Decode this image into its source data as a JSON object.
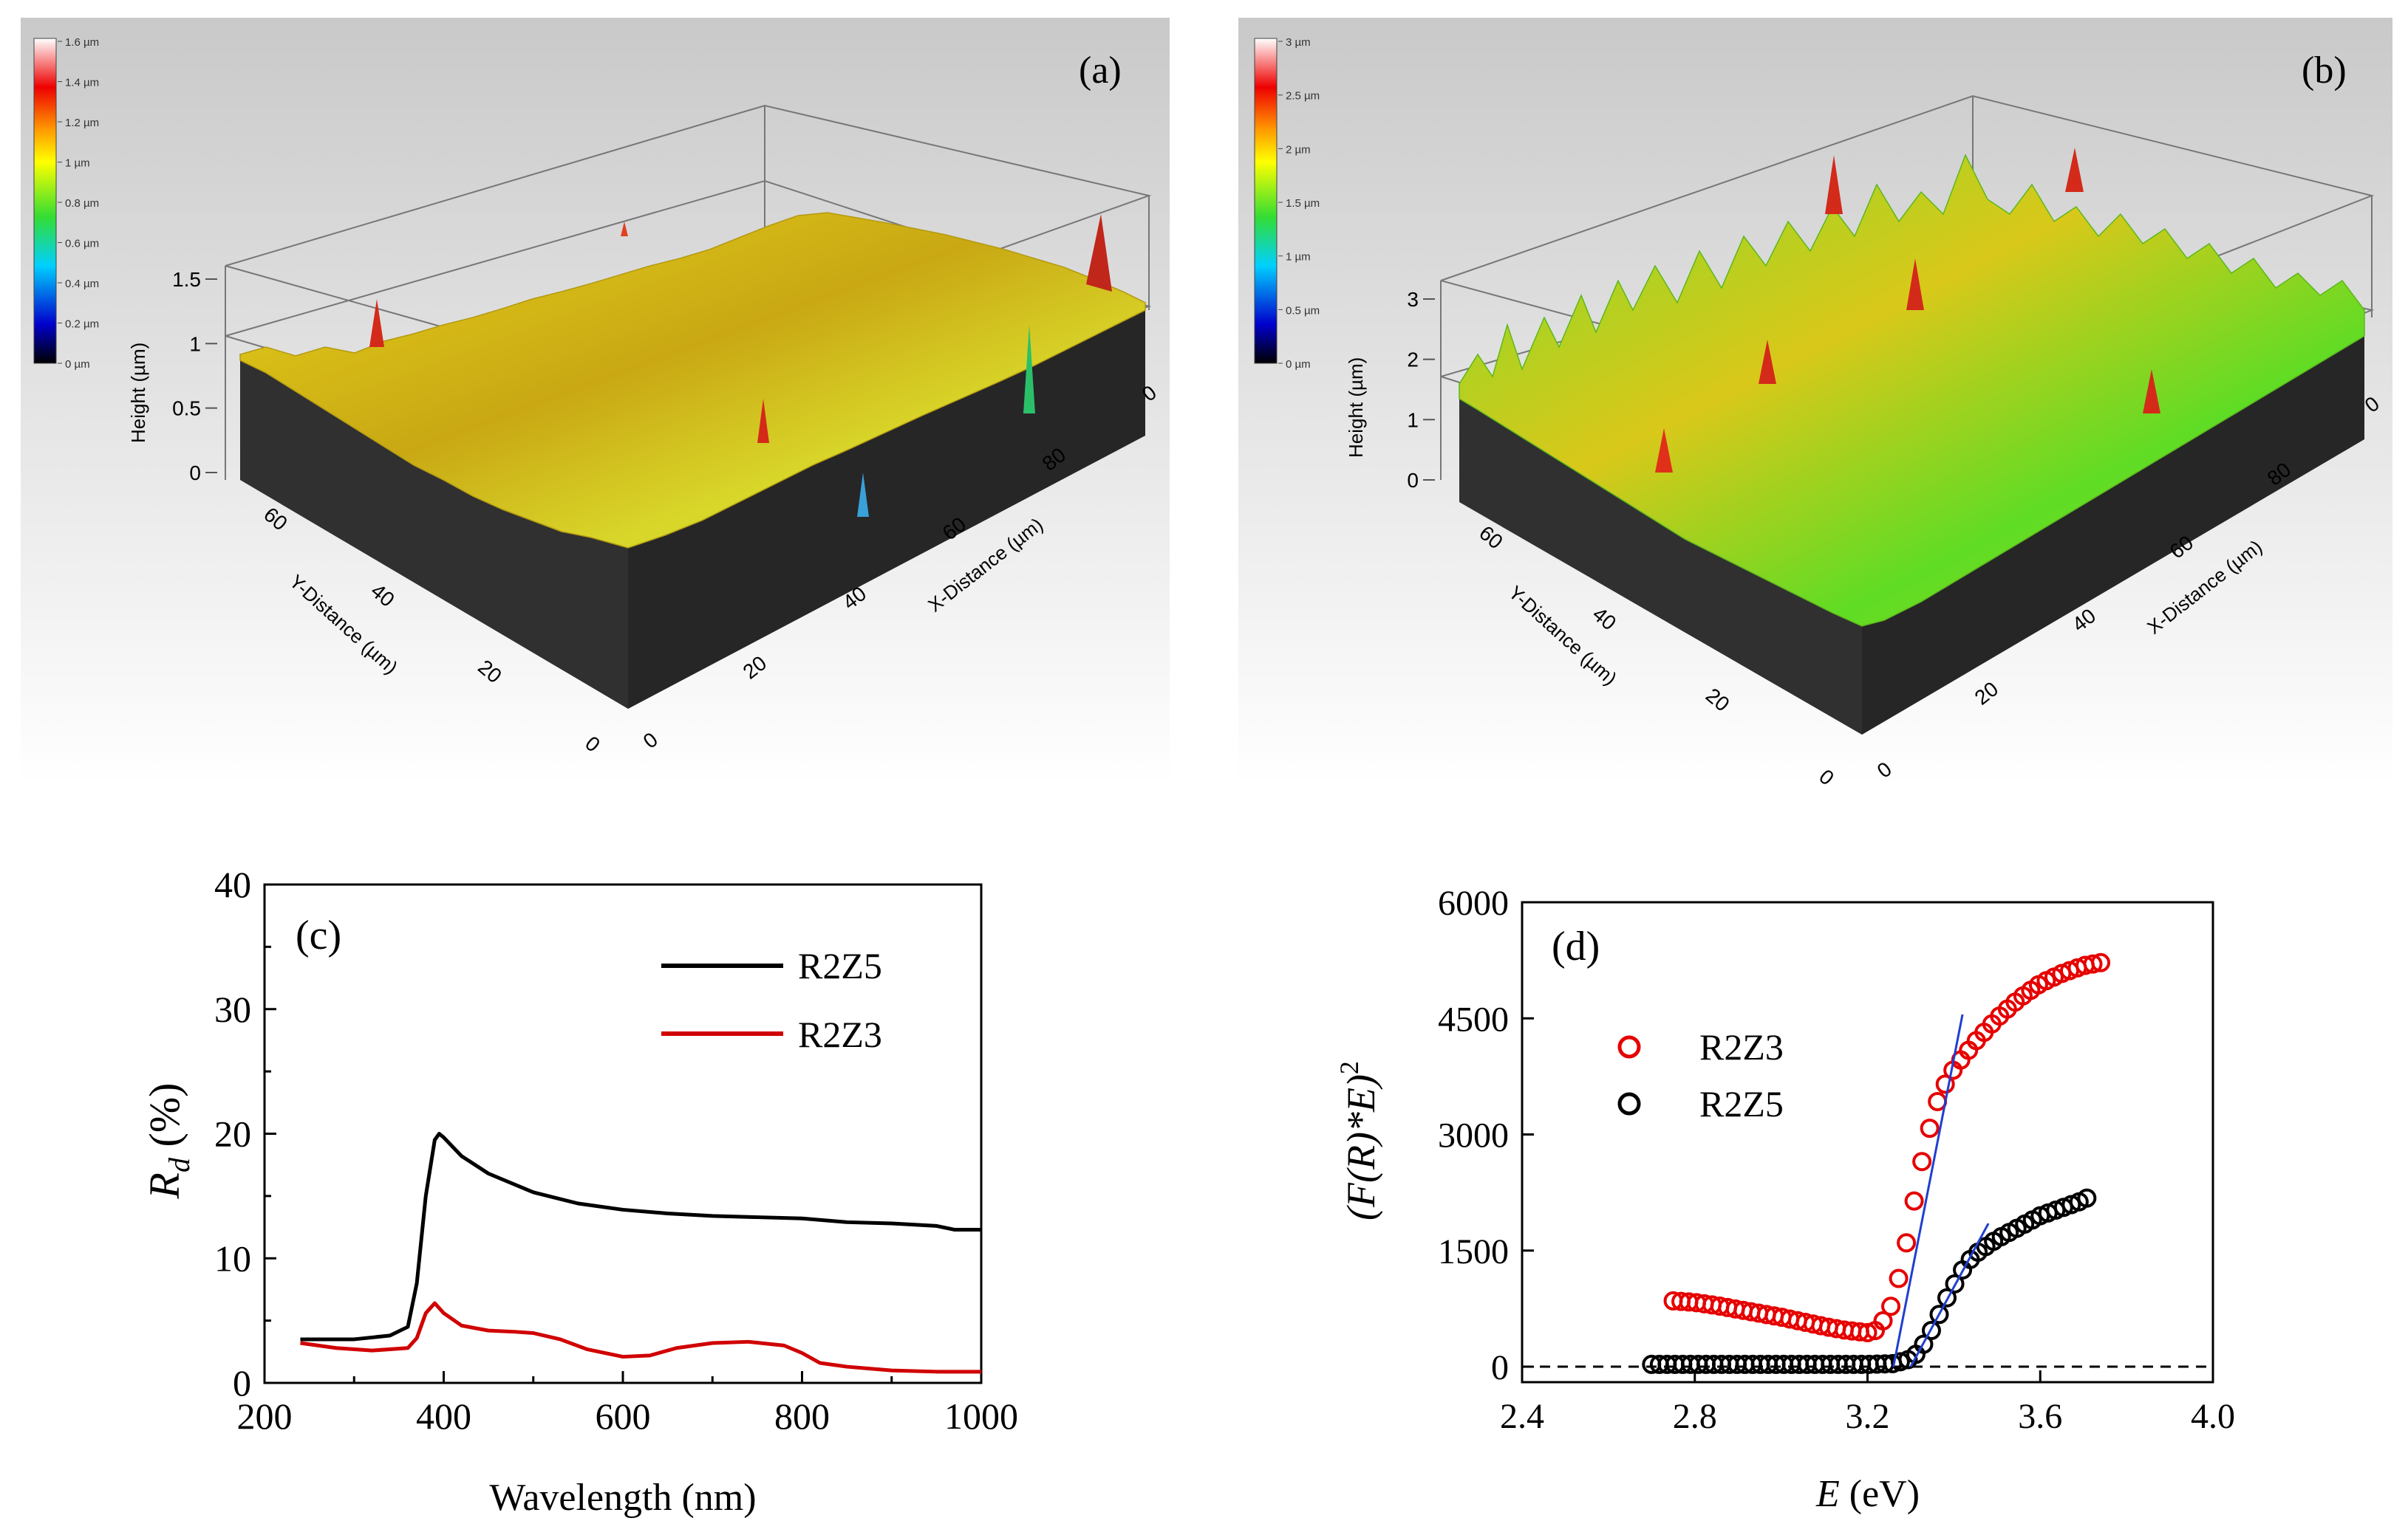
{
  "figure": {
    "panels": [
      "(a)",
      "(b)",
      "(c)",
      "(d)"
    ]
  },
  "chart_data": [
    {
      "type": "surface3d",
      "panel": "(a)",
      "colorbar": {
        "labels": [
          "1.6 µm",
          "1.4 µm",
          "1.2 µm",
          "1 µm",
          "0.8 µm",
          "0.6 µm",
          "0.4 µm",
          "0.2 µm",
          "0 µm"
        ]
      },
      "zlabel": "Height (µm)",
      "zticks": [
        "0",
        "0.5",
        "1",
        "1.5"
      ],
      "ylabel": "Y-Distance (µm)",
      "yticks": [
        "0",
        "20",
        "40",
        "60"
      ],
      "xlabel": "X-Distance (µm)",
      "xticks": [
        "0",
        "20",
        "40",
        "60",
        "80",
        "0"
      ]
    },
    {
      "type": "surface3d",
      "panel": "(b)",
      "colorbar": {
        "labels": [
          "3 µm",
          "2.5 µm",
          "2 µm",
          "1.5 µm",
          "1 µm",
          "0.5 µm",
          "0 µm"
        ]
      },
      "zlabel": "Height (µm)",
      "zticks": [
        "0",
        "1",
        "2",
        "3"
      ],
      "ylabel": "Y-Distance (µm)",
      "yticks": [
        "0",
        "20",
        "40",
        "60"
      ],
      "xlabel": "X-Distance (µm)",
      "xticks": [
        "0",
        "20",
        "40",
        "60",
        "80",
        "0"
      ]
    },
    {
      "type": "line",
      "panel": "(c)",
      "xlabel": "Wavelength (nm)",
      "ylabel": "R_d (%)",
      "xlim": [
        200,
        1000
      ],
      "ylim": [
        0,
        40
      ],
      "xticks": [
        200,
        400,
        600,
        800,
        1000
      ],
      "yticks": [
        0,
        10,
        20,
        30,
        40
      ],
      "series": [
        {
          "name": "R2Z5",
          "color": "#000000",
          "x": [
            240,
            300,
            340,
            360,
            370,
            380,
            390,
            395,
            400,
            420,
            450,
            500,
            550,
            600,
            650,
            700,
            750,
            800,
            850,
            900,
            950,
            970,
            1000
          ],
          "y": [
            3.5,
            3.5,
            3.8,
            4.5,
            8,
            15,
            19.5,
            20,
            19.7,
            18.2,
            16.8,
            15.3,
            14.4,
            13.9,
            13.6,
            13.4,
            13.3,
            13.2,
            12.9,
            12.8,
            12.6,
            12.3,
            12.3
          ]
        },
        {
          "name": "R2Z3",
          "color": "#d00000",
          "x": [
            240,
            280,
            320,
            360,
            370,
            380,
            390,
            400,
            420,
            450,
            480,
            500,
            530,
            560,
            600,
            630,
            660,
            700,
            740,
            780,
            800,
            820,
            850,
            900,
            950,
            1000
          ],
          "y": [
            3.2,
            2.8,
            2.6,
            2.8,
            3.6,
            5.6,
            6.4,
            5.6,
            4.6,
            4.2,
            4.1,
            4.0,
            3.5,
            2.7,
            2.1,
            2.2,
            2.8,
            3.2,
            3.3,
            3.0,
            2.4,
            1.6,
            1.3,
            1.0,
            0.9,
            0.9
          ]
        }
      ],
      "legend": [
        "R2Z5",
        "R2Z3"
      ]
    },
    {
      "type": "scatter",
      "panel": "(d)",
      "xlabel_var": "E",
      "xlabel_unit": " (eV)",
      "ylabel_left": "(F(R)*E)",
      "ylabel_exp": "2",
      "xlim": [
        2.4,
        4.0
      ],
      "ylim": [
        -200,
        6000
      ],
      "xticks": [
        "2.4",
        "2.8",
        "3.2",
        "3.6",
        "4.0"
      ],
      "yticks": [
        "0",
        "1500",
        "3000",
        "4500",
        "6000"
      ],
      "series": [
        {
          "name": "R2Z3",
          "color": "#e60000",
          "x": [
            2.75,
            2.8,
            2.85,
            2.9,
            2.95,
            3.0,
            3.05,
            3.1,
            3.15,
            3.2,
            3.22,
            3.25,
            3.28,
            3.3,
            3.32,
            3.34,
            3.36,
            3.38,
            3.4,
            3.45,
            3.5,
            3.55,
            3.6,
            3.65,
            3.7,
            3.74
          ],
          "y": [
            850,
            830,
            790,
            740,
            690,
            640,
            580,
            520,
            470,
            440,
            470,
            700,
            1300,
            1900,
            2500,
            3000,
            3400,
            3650,
            3850,
            4200,
            4500,
            4750,
            4950,
            5080,
            5180,
            5220
          ]
        },
        {
          "name": "R2Z5",
          "color": "#000000",
          "x": [
            2.7,
            2.8,
            2.9,
            3.0,
            3.1,
            3.2,
            3.26,
            3.3,
            3.32,
            3.34,
            3.36,
            3.38,
            3.4,
            3.42,
            3.44,
            3.46,
            3.5,
            3.55,
            3.6,
            3.65,
            3.7,
            3.72
          ],
          "y": [
            30,
            30,
            30,
            30,
            30,
            30,
            40,
            100,
            200,
            380,
            600,
            850,
            1050,
            1250,
            1400,
            1500,
            1650,
            1800,
            1950,
            2050,
            2150,
            2220
          ]
        }
      ],
      "fit_lines": [
        {
          "x": [
            3.26,
            3.42
          ],
          "y": [
            0,
            4550
          ],
          "color": "#1f3fd0"
        },
        {
          "x": [
            3.3,
            3.48
          ],
          "y": [
            0,
            1850
          ],
          "color": "#1f3fd0"
        }
      ],
      "legend": [
        "R2Z3",
        "R2Z5"
      ]
    }
  ]
}
